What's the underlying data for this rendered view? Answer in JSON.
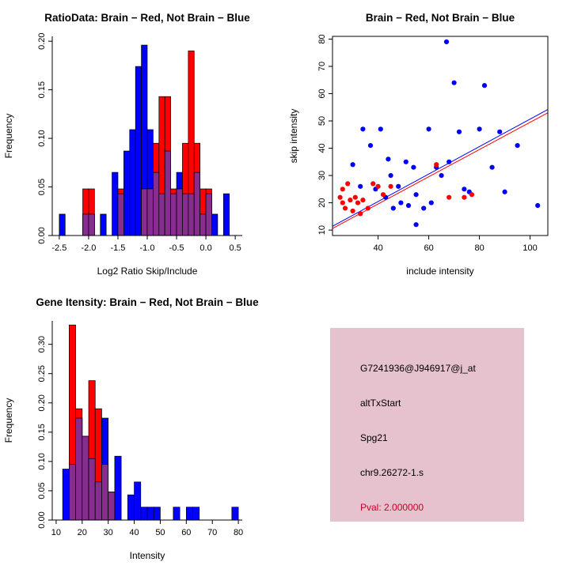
{
  "colors": {
    "brain": "#ff0000",
    "not_brain": "#0000ff",
    "overlap": "#872d8f",
    "axis": "#000000",
    "background": "#ffffff"
  },
  "chart_data": [
    {
      "id": "ratio_histogram",
      "type": "bar",
      "subtype": "overlaid-histogram",
      "title": "RatioData: Brain − Red, Not Brain − Blue",
      "xlabel": "Log2 Ratio Skip/Include",
      "ylabel": "Frequency",
      "xlim": [
        -2.62,
        0.62
      ],
      "ylim": [
        0,
        0.205
      ],
      "xtick_values": [
        -2.5,
        -2.0,
        -1.5,
        -1.0,
        -0.5,
        0.0,
        0.5
      ],
      "xtick_labels": [
        "-2.5",
        "-2.0",
        "-1.5",
        "-1.0",
        "-0.5",
        "0.0",
        "0.5"
      ],
      "ytick_values": [
        0,
        0.05,
        0.1,
        0.15,
        0.2
      ],
      "ytick_labels": [
        "0.00",
        "0.05",
        "0.10",
        "0.15",
        "0.20"
      ],
      "bin_start": -2.5,
      "bin_width": 0.1,
      "grid": false,
      "box": false,
      "overlap_color": "#872d8f",
      "series": [
        {
          "name": "Not Brain",
          "color": "#0000ff",
          "values": [
            0.022,
            0,
            0,
            0,
            0.022,
            0.022,
            0,
            0.022,
            0,
            0.065,
            0.043,
            0.087,
            0.109,
            0.174,
            0.196,
            0.109,
            0.065,
            0.043,
            0.087,
            0.043,
            0.065,
            0.043,
            0.043,
            0.065,
            0.022,
            0.043,
            0.022,
            0,
            0.043,
            0
          ]
        },
        {
          "name": "Brain",
          "color": "#ff0000",
          "values": [
            0,
            0,
            0,
            0,
            0.048,
            0.048,
            0,
            0,
            0,
            0,
            0.048,
            0,
            0,
            0,
            0.048,
            0.048,
            0.095,
            0.143,
            0.143,
            0.048,
            0.048,
            0.095,
            0.19,
            0.095,
            0.048,
            0.048,
            0,
            0,
            0,
            0
          ]
        }
      ]
    },
    {
      "id": "intensity_scatter",
      "type": "scatter",
      "title": "Brain − Red, Not Brain − Blue",
      "xlabel": "include intensity",
      "ylabel": "skip intensity",
      "xlim": [
        22,
        107
      ],
      "ylim": [
        8,
        81
      ],
      "xtick_values": [
        40,
        60,
        80,
        100
      ],
      "xtick_labels": [
        "40",
        "60",
        "80",
        "100"
      ],
      "ytick_values": [
        10,
        20,
        30,
        40,
        50,
        60,
        70,
        80
      ],
      "ytick_labels": [
        "10",
        "20",
        "30",
        "40",
        "50",
        "60",
        "70",
        "80"
      ],
      "grid": false,
      "box": true,
      "lines": [
        {
          "color": "#ff0000",
          "from": [
            22,
            10.6
          ],
          "to": [
            107,
            53.0
          ]
        },
        {
          "color": "#0000ff",
          "from": [
            22,
            11.4
          ],
          "to": [
            107,
            54.2
          ]
        }
      ],
      "series": [
        {
          "name": "Not Brain",
          "color": "#0000ff",
          "points": [
            [
              30,
              34
            ],
            [
              33,
              26
            ],
            [
              34,
              47
            ],
            [
              37,
              41
            ],
            [
              39,
              25
            ],
            [
              41,
              47
            ],
            [
              43,
              22
            ],
            [
              44,
              36
            ],
            [
              45,
              30
            ],
            [
              46,
              18
            ],
            [
              48,
              26
            ],
            [
              49,
              20
            ],
            [
              51,
              35
            ],
            [
              52,
              19
            ],
            [
              54,
              33
            ],
            [
              55,
              23
            ],
            [
              55,
              12
            ],
            [
              58,
              18
            ],
            [
              60,
              47
            ],
            [
              61,
              20
            ],
            [
              63,
              33
            ],
            [
              65,
              30
            ],
            [
              67,
              79
            ],
            [
              68,
              35
            ],
            [
              70,
              64
            ],
            [
              72,
              46
            ],
            [
              74,
              25
            ],
            [
              76,
              24
            ],
            [
              80,
              47
            ],
            [
              82,
              63
            ],
            [
              85,
              33
            ],
            [
              88,
              46
            ],
            [
              90,
              24
            ],
            [
              95,
              41
            ],
            [
              103,
              19
            ]
          ]
        },
        {
          "name": "Brain",
          "color": "#ff0000",
          "points": [
            [
              25,
              22
            ],
            [
              26,
              20
            ],
            [
              26,
              25
            ],
            [
              27,
              18
            ],
            [
              28,
              27
            ],
            [
              29,
              21
            ],
            [
              30,
              17
            ],
            [
              31,
              22
            ],
            [
              32,
              20
            ],
            [
              33,
              16
            ],
            [
              34,
              21
            ],
            [
              36,
              18
            ],
            [
              38,
              27
            ],
            [
              40,
              26
            ],
            [
              42,
              23
            ],
            [
              45,
              26
            ],
            [
              63,
              34
            ],
            [
              68,
              22
            ],
            [
              74,
              22
            ],
            [
              77,
              23
            ]
          ]
        }
      ]
    },
    {
      "id": "gene_intensity_histogram",
      "type": "bar",
      "subtype": "overlaid-histogram",
      "title": "Gene Itensity: Brain − Red, Not Brain − Blue",
      "xlabel": "Intensity",
      "ylabel": "Frequency",
      "xlim": [
        8.5,
        81.5
      ],
      "ylim": [
        0,
        0.34
      ],
      "xtick_values": [
        10,
        20,
        30,
        40,
        50,
        60,
        70,
        80
      ],
      "xtick_labels": [
        "10",
        "20",
        "30",
        "40",
        "50",
        "60",
        "70",
        "80"
      ],
      "ytick_values": [
        0,
        0.05,
        0.1,
        0.15,
        0.2,
        0.25,
        0.3
      ],
      "ytick_labels": [
        "0.00",
        "0.05",
        "0.10",
        "0.15",
        "0.20",
        "0.25",
        "0.30"
      ],
      "bin_start": 10,
      "bin_width": 2.5,
      "grid": false,
      "box": false,
      "overlap_color": "#872d8f",
      "series": [
        {
          "name": "Not Brain",
          "color": "#0000ff",
          "values": [
            0,
            0.087,
            0.095,
            0.174,
            0.143,
            0.105,
            0.065,
            0.174,
            0.048,
            0.109,
            0,
            0.043,
            0.065,
            0.022,
            0.022,
            0.022,
            0,
            0,
            0.022,
            0,
            0.022,
            0.022,
            0,
            0,
            0,
            0,
            0,
            0.022
          ]
        },
        {
          "name": "Brain",
          "color": "#ff0000",
          "values": [
            0,
            0,
            0.333,
            0.19,
            0.143,
            0.238,
            0.19,
            0.095,
            0.048,
            0,
            0,
            0,
            0,
            0,
            0,
            0,
            0,
            0,
            0,
            0,
            0,
            0,
            0,
            0,
            0,
            0,
            0,
            0
          ]
        }
      ]
    }
  ],
  "info_panel": {
    "background": "#e6c2ce",
    "lines": [
      {
        "text": "G7241936@J946917@j_at",
        "color": "#000000"
      },
      {
        "text": "altTxStart",
        "color": "#000000"
      },
      {
        "text": "Spg21",
        "color": "#000000"
      },
      {
        "text": "chr9.26272-1.s",
        "color": "#000000"
      },
      {
        "text": "Pval: 2.000000",
        "color": "#c40029"
      }
    ]
  }
}
